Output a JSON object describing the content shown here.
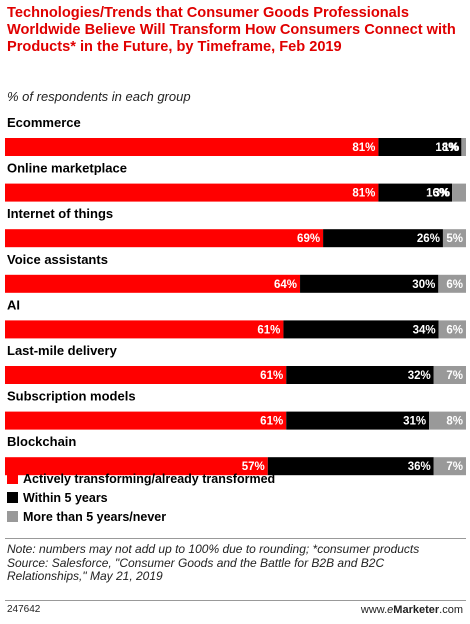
{
  "title": "Technologies/Trends that Consumer Goods Professionals Worldwide Believe Will Transform How Consumers Connect with Products* in the Future, by Timeframe, Feb 2019",
  "subtitle": "% of respondents in each group",
  "notes": {
    "note": "Note: numbers may not add up to 100% due to rounding; *consumer products",
    "source": "Source: Salesforce, \"Consumer Goods and the Battle for B2B and B2C Relationships,\" May 21, 2019"
  },
  "footer": {
    "chart_id": "247642",
    "brand_prefix": "www.",
    "brand_e": "e",
    "brand_main": "Marketer",
    "brand_suffix": ".com"
  },
  "colors": {
    "series1": "#ff0000",
    "series2": "#000000",
    "series3": "#999999",
    "title": "#e00000"
  },
  "chart_data": {
    "type": "bar",
    "orientation": "horizontal",
    "stacked": true,
    "value_suffix": "%",
    "categories": [
      "Ecommerce",
      "Online marketplace",
      "Internet of things",
      "Voice assistants",
      "AI",
      "Last-mile delivery",
      "Subscription models",
      "Blockchain"
    ],
    "series": [
      {
        "name": "Actively transforming/already transformed",
        "values": [
          81,
          81,
          69,
          64,
          61,
          61,
          61,
          57
        ]
      },
      {
        "name": "Within 5 years",
        "values": [
          18,
          16,
          26,
          30,
          34,
          32,
          31,
          36
        ]
      },
      {
        "name": "More than 5 years/never",
        "values": [
          1,
          3,
          5,
          6,
          6,
          7,
          8,
          7
        ]
      }
    ],
    "legend_position": "bottom-left",
    "xlim": [
      0,
      100
    ],
    "grid": false
  }
}
